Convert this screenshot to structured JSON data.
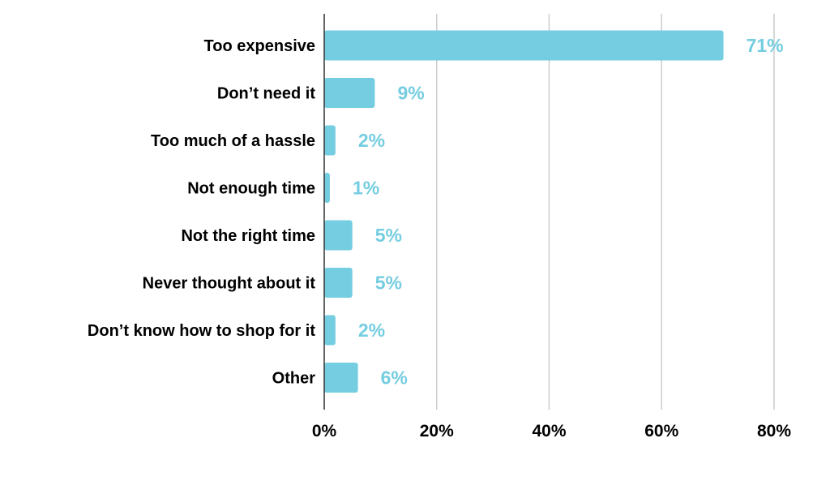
{
  "chart_data": {
    "type": "bar",
    "orientation": "horizontal",
    "title": "",
    "xlabel": "",
    "ylabel": "",
    "categories": [
      "Too expensive",
      "Don’t need it",
      "Too much of a hassle",
      "Not enough time",
      "Not the right time",
      "Never thought about it",
      "Don’t know how to shop for it",
      "Other"
    ],
    "values": [
      71,
      9,
      2,
      1,
      5,
      5,
      2,
      6
    ],
    "value_labels": [
      "71%",
      "9%",
      "2%",
      "1%",
      "5%",
      "5%",
      "2%",
      "6%"
    ],
    "xlim": [
      0,
      80
    ],
    "x_ticks": [
      0,
      20,
      40,
      60,
      80
    ],
    "x_tick_labels": [
      "0%",
      "20%",
      "40%",
      "60%",
      "80%"
    ],
    "grid": "vertical",
    "legend": "none"
  },
  "colors": {
    "bar": "#74cde0",
    "value_label": "#74cde0",
    "grid": "#cccccc",
    "axis": "#333333",
    "text": "#000000"
  }
}
